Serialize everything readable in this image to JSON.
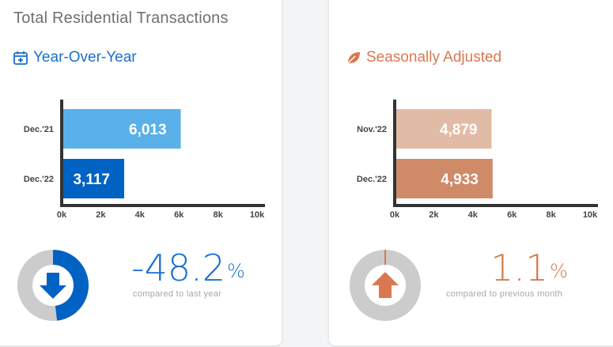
{
  "page_title": "Total Residential Transactions",
  "colors": {
    "blue_light": "#5ab0e8",
    "blue_dark": "#0063c3",
    "orange_light": "#e2bba6",
    "orange_dark": "#cf8a68",
    "orange_accent": "#d97850",
    "axis": "#333333",
    "donut_track": "#cccccc"
  },
  "yoy": {
    "label": "Year-Over-Year",
    "icon": "calendar-plus-icon",
    "percent_number": "-48.2",
    "percent_sign": "%",
    "note": "compared to last year",
    "donut_fraction": 0.482,
    "indicator_icon": "arrow-down-icon"
  },
  "seasonal": {
    "label": "Seasonally Adjusted",
    "icon": "leaf-icon",
    "percent_number": "1.1",
    "percent_sign": "%",
    "note": "compared to previous month",
    "donut_fraction": 0.011,
    "indicator_icon": "arrow-up-icon"
  },
  "chart_data": [
    {
      "type": "bar",
      "orientation": "horizontal",
      "categories": [
        "Dec.'21",
        "Dec.'22"
      ],
      "values": [
        6013,
        3117
      ],
      "value_labels": [
        "6,013",
        "3,117"
      ],
      "xlim": [
        0,
        10000
      ],
      "ticks": [
        "0k",
        "2k",
        "4k",
        "6k",
        "8k",
        "10k"
      ],
      "colors": [
        "#5ab0e8",
        "#0063c3"
      ],
      "grid": false
    },
    {
      "type": "bar",
      "orientation": "horizontal",
      "categories": [
        "Nov.'22",
        "Dec.'22"
      ],
      "values": [
        4879,
        4933
      ],
      "value_labels": [
        "4,879",
        "4,933"
      ],
      "xlim": [
        0,
        10000
      ],
      "ticks": [
        "0k",
        "2k",
        "4k",
        "6k",
        "8k",
        "10k"
      ],
      "colors": [
        "#e2bba6",
        "#cf8a68"
      ],
      "grid": false
    }
  ]
}
